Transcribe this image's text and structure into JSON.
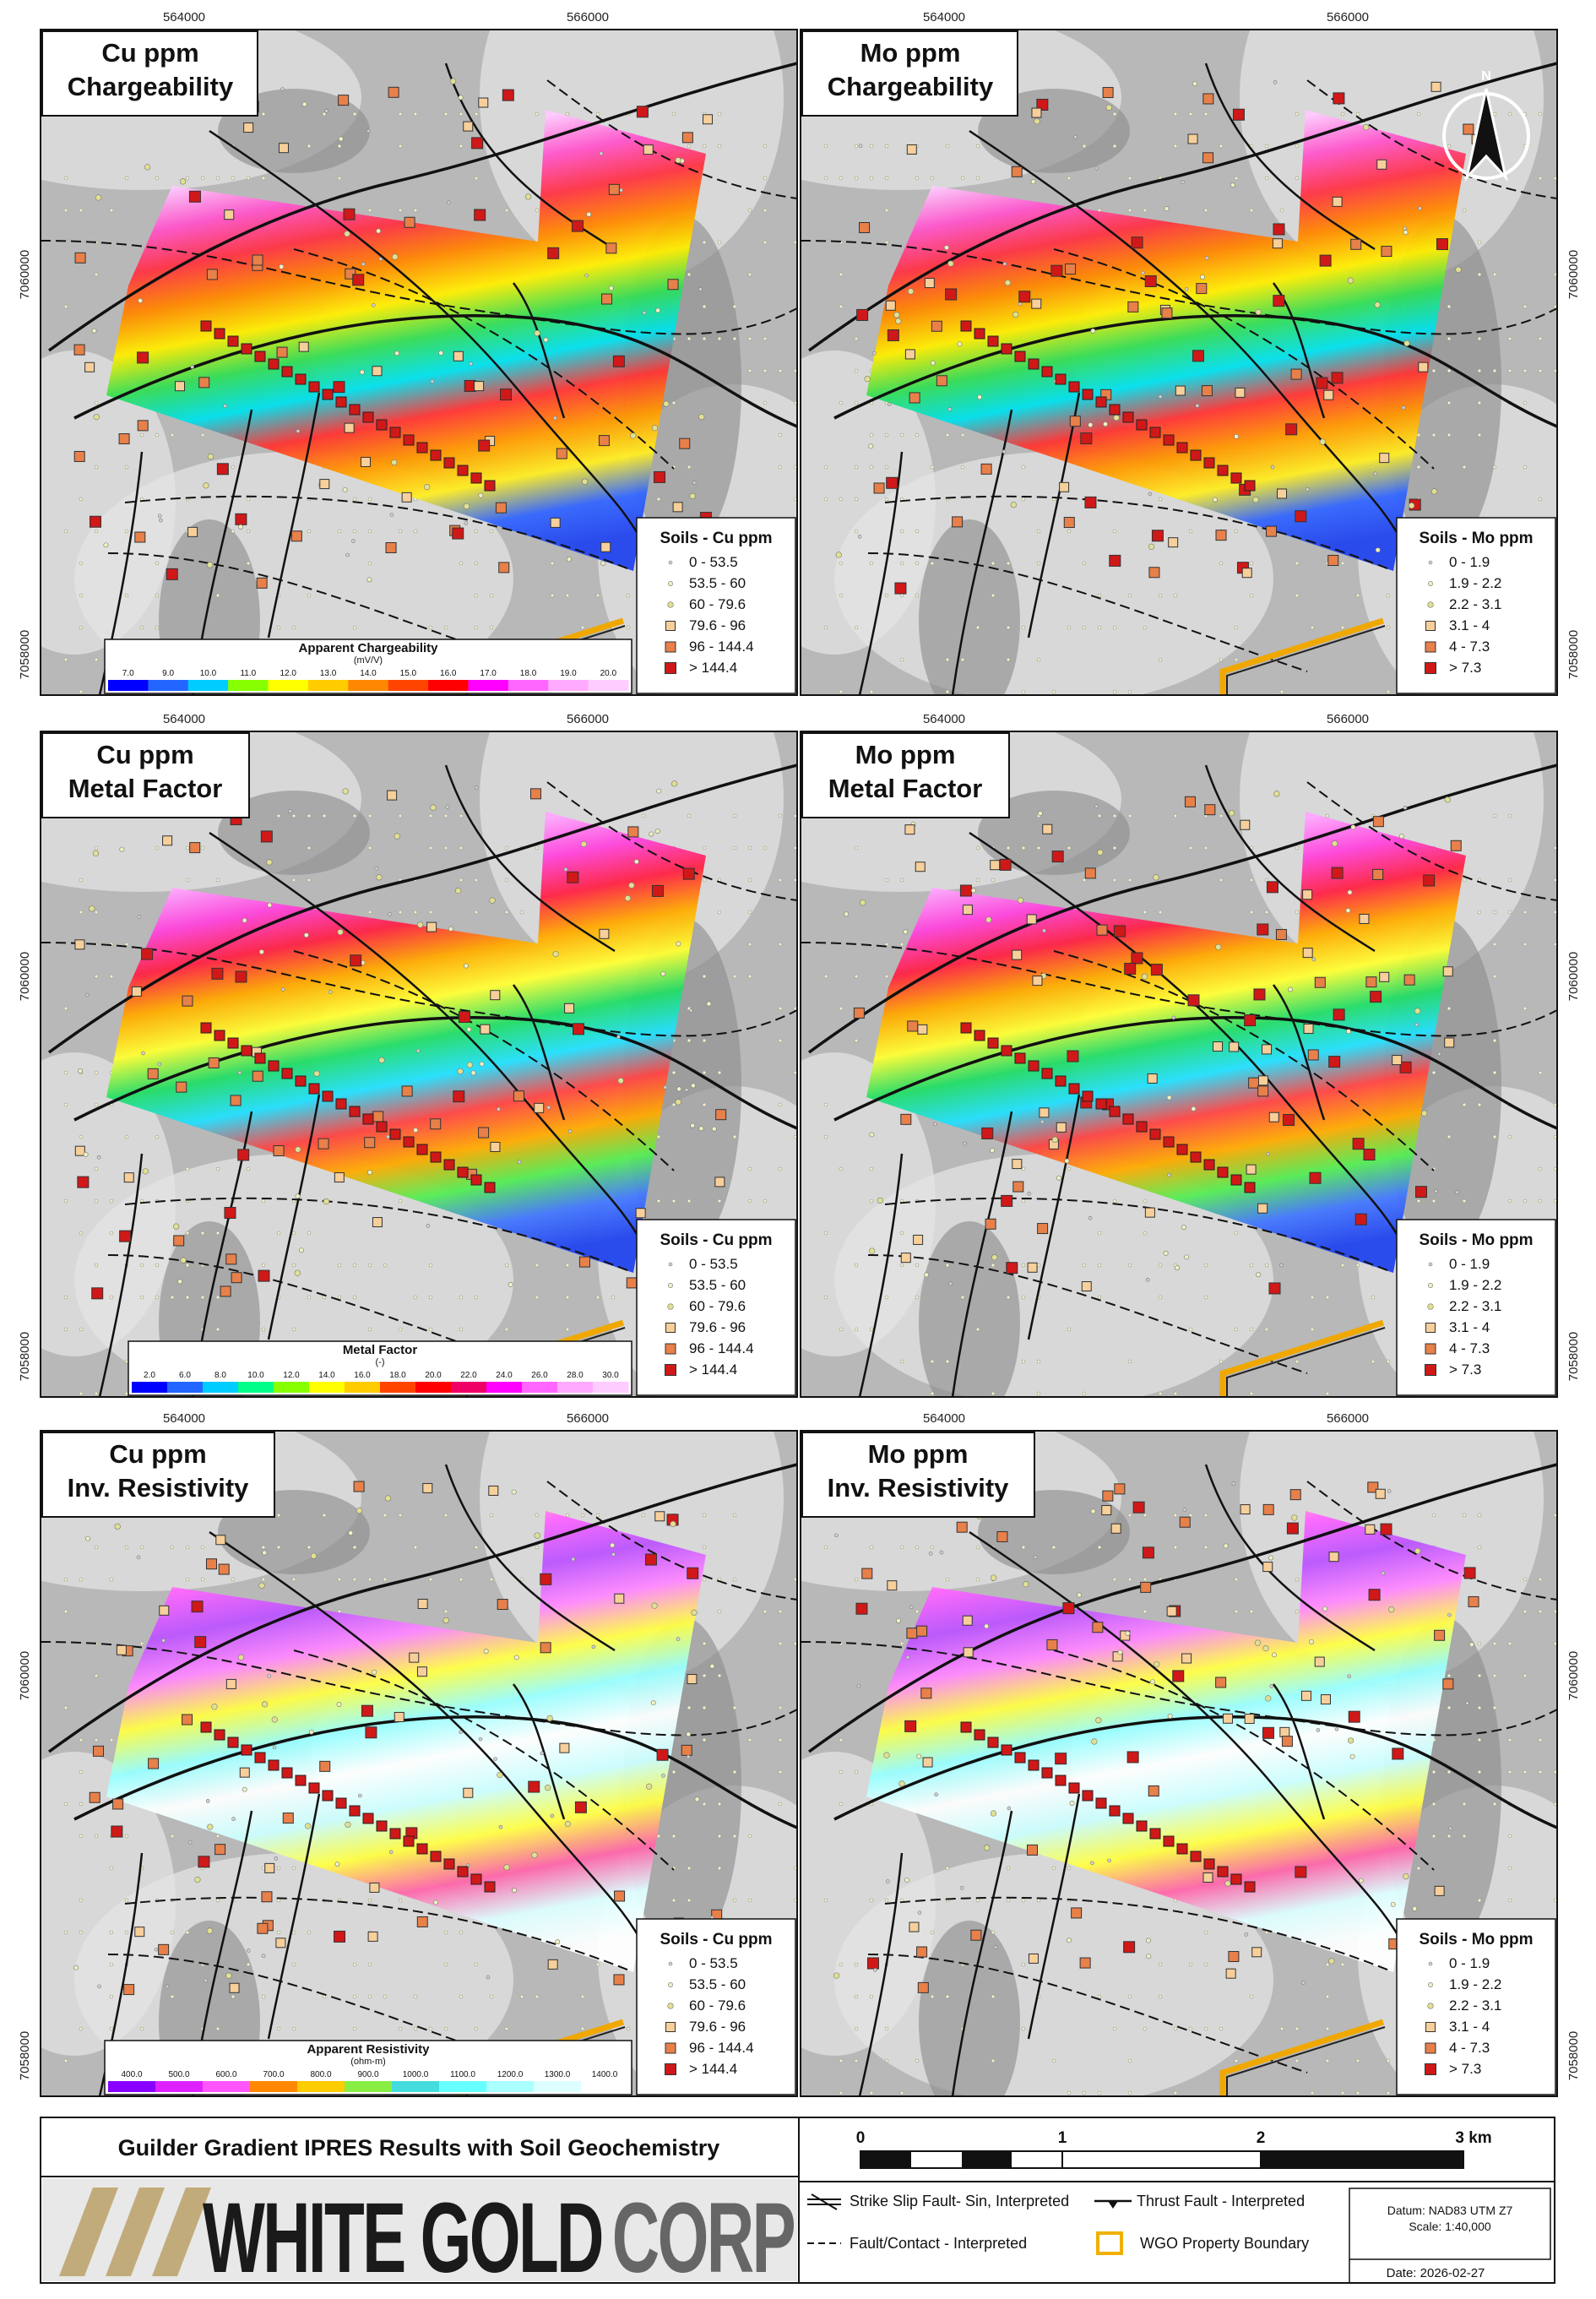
{
  "axes": {
    "x_labels": [
      "564000",
      "566000"
    ],
    "y_labels": [
      "7060000",
      "7058000"
    ]
  },
  "panels": [
    {
      "title": [
        "Cu ppm",
        "Chargeability"
      ],
      "legend_title": "Soils - Cu ppm",
      "legend_items": [
        "0 - 53.5",
        "53.5 - 60",
        "60 - 79.6",
        "79.6 - 96",
        "96 - 144.4",
        "> 144.4"
      ],
      "colorbar": {
        "title": "Apparent Chargeability",
        "unit": "(mV/V)",
        "ticks": [
          "7.0",
          "9.0",
          "10.0",
          "11.0",
          "12.0",
          "13.0",
          "14.0",
          "15.0",
          "16.0",
          "17.0",
          "18.0",
          "19.0",
          "20.0"
        ]
      }
    },
    {
      "title": [
        "Mo ppm",
        "Chargeability"
      ],
      "legend_title": "Soils - Mo ppm",
      "legend_items": [
        "0 - 1.9",
        "1.9 - 2.2",
        "2.2 - 3.1",
        "3.1 - 4",
        "4 - 7.3",
        "> 7.3"
      ],
      "north": "N"
    },
    {
      "title": [
        "Cu ppm",
        "Metal Factor"
      ],
      "legend_title": "Soils - Cu ppm",
      "legend_items": [
        "0 - 53.5",
        "53.5 - 60",
        "60 - 79.6",
        "79.6 - 96",
        "96 - 144.4",
        "> 144.4"
      ],
      "colorbar": {
        "title": "Metal Factor",
        "unit": "(-)",
        "ticks": [
          "2.0",
          "6.0",
          "8.0",
          "10.0",
          "12.0",
          "14.0",
          "16.0",
          "18.0",
          "20.0",
          "22.0",
          "24.0",
          "26.0",
          "28.0",
          "30.0"
        ]
      }
    },
    {
      "title": [
        "Mo ppm",
        "Metal Factor"
      ],
      "legend_title": "Soils - Mo ppm",
      "legend_items": [
        "0 - 1.9",
        "1.9 - 2.2",
        "2.2 - 3.1",
        "3.1 - 4",
        "4 - 7.3",
        "> 7.3"
      ]
    },
    {
      "title": [
        "Cu ppm",
        "Inv. Resistivity"
      ],
      "legend_title": "Soils - Cu ppm",
      "legend_items": [
        "0 - 53.5",
        "53.5 - 60",
        "60 - 79.6",
        "79.6 - 96",
        "96 - 144.4",
        "> 144.4"
      ],
      "colorbar": {
        "title": "Apparent Resistivity",
        "unit": "(ohm-m)",
        "ticks": [
          "400.0",
          "500.0",
          "600.0",
          "700.0",
          "800.0",
          "900.0",
          "1000.0",
          "1100.0",
          "1200.0",
          "1300.0",
          "1400.0"
        ]
      }
    },
    {
      "title": [
        "Mo ppm",
        "Inv. Resistivity"
      ],
      "legend_title": "Soils - Mo ppm",
      "legend_items": [
        "0 - 1.9",
        "1.9 - 2.2",
        "2.2 - 3.1",
        "3.1 - 4",
        "4 - 7.3",
        "> 7.3"
      ]
    }
  ],
  "footer": {
    "title": "Guilder Gradient IPRES Results with Soil Geochemistry",
    "company": [
      "WHITE GOLD",
      "CORP"
    ],
    "scale_labels": [
      "0",
      "1",
      "2",
      "3 km"
    ],
    "legend": [
      "Strike Slip Fault- Sin, Interpreted",
      "Thrust Fault - Interpreted",
      "Fault/Contact - Interpreted",
      "WGO Property Boundary"
    ],
    "datum": "Datum: NAD83 UTM Z7",
    "scale": "Scale: 1:40,000",
    "date": "Date: 2026-02-27"
  }
}
